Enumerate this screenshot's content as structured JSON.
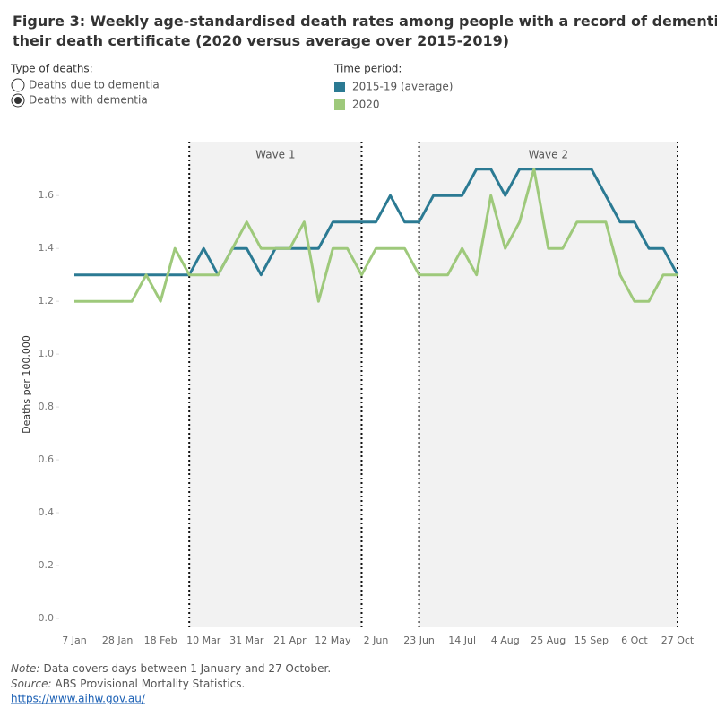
{
  "chart_data": {
    "type": "line",
    "title": "Figure 3: Weekly age-standardised death rates among people with a record of dementia in their death certificate (2020 versus average over 2015-2019)",
    "filter": {
      "label": "Type of deaths:",
      "options": [
        "Deaths due to dementia",
        "Deaths with dementia"
      ],
      "selected": 1
    },
    "legend_title": "Time period:",
    "y_label": "Deaths per 100,000",
    "categories": [
      "7 Jan",
      null,
      null,
      "28 Jan",
      null,
      null,
      "18 Feb",
      null,
      null,
      "10 Mar",
      null,
      null,
      "31 Mar",
      null,
      null,
      "21 Apr",
      null,
      null,
      "12 May",
      null,
      null,
      "2 Jun",
      null,
      null,
      "23 Jun",
      null,
      null,
      "14 Jul",
      null,
      null,
      "4 Aug",
      null,
      null,
      "25 Aug",
      null,
      null,
      "15 Sep",
      null,
      null,
      "6 Oct",
      null,
      null,
      "27 Oct"
    ],
    "series": [
      {
        "name": "2015-19 (average)",
        "color": "#2b7a93",
        "values": [
          1.3,
          1.3,
          1.3,
          1.3,
          1.3,
          1.3,
          1.3,
          1.3,
          1.3,
          1.4,
          1.3,
          1.4,
          1.4,
          1.3,
          1.4,
          1.4,
          1.4,
          1.4,
          1.5,
          1.5,
          1.5,
          1.5,
          1.6,
          1.5,
          1.5,
          1.6,
          1.6,
          1.6,
          1.7,
          1.7,
          1.6,
          1.7,
          1.7,
          1.7,
          1.7,
          1.7,
          1.7,
          1.6,
          1.5,
          1.5,
          1.4,
          1.4,
          1.3
        ]
      },
      {
        "name": "2020",
        "color": "#9ec97b",
        "values": [
          1.2,
          1.2,
          1.2,
          1.2,
          1.2,
          1.3,
          1.2,
          1.4,
          1.3,
          1.3,
          1.3,
          1.4,
          1.5,
          1.4,
          1.4,
          1.4,
          1.5,
          1.2,
          1.4,
          1.4,
          1.3,
          1.4,
          1.4,
          1.4,
          1.3,
          1.3,
          1.3,
          1.4,
          1.3,
          1.6,
          1.4,
          1.5,
          1.7,
          1.4,
          1.4,
          1.5,
          1.5,
          1.5,
          1.3,
          1.2,
          1.2,
          1.3,
          1.3
        ]
      }
    ],
    "bands": [
      {
        "label": "Wave 1",
        "start": 8,
        "end": 20
      },
      {
        "label": "Wave 2",
        "start": 24,
        "end": 42
      }
    ],
    "ylim": [
      0,
      1.75
    ],
    "yticks": [
      {
        "value": 0,
        "label": "0.0"
      },
      0.2,
      0.4,
      0.6,
      0.8,
      {
        "value": 1,
        "label": "1.0"
      },
      1.2,
      1.4,
      1.6
    ],
    "grid": false,
    "notes": [
      {
        "label": "Note:",
        "text": "Data covers days between 1 January and 27 October."
      },
      {
        "label": "Source:",
        "text": "ABS Provisional Mortality Statistics."
      }
    ],
    "link": "https://www.aihw.gov.au/"
  }
}
